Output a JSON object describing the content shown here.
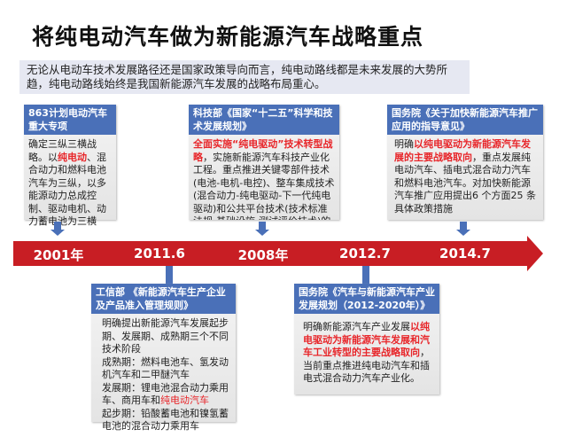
{
  "title": "将纯电动汽车做为新能源汽车战略重点",
  "intro": "无论从电动车技术发展路径还是国家政策导向而言，纯电动路线都是未来发展的大势所趋，纯电动路线始终是我国新能源汽车发展的战略布局重心。",
  "timeline": [
    "2001年",
    "2011.6",
    "2008年",
    "2012.7",
    "2014.7"
  ],
  "top_boxes": [
    {
      "header": "863计划电动汽车重大专项",
      "pre": "确定三纵三横战略。以",
      "red": "纯电动",
      "post": "、混合动力和燃料电池汽车为三纵，以多能源动力总成控制、驱动电机、动力蓄电池为三横"
    },
    {
      "header": "科技部《国家“十二五”科学和技术发展规划》",
      "pre": "",
      "red": "全面实施“纯电驱动”技术转型战略",
      "post": "，实施新能源汽车科技产业化工程。重点推进关键零部件技术(电池-电机-电控)、整车集成技术(混合动力-纯电驱动-下一代纯电驱动)和公共平台技术(技术标准法规-基础设施-测试评价技术)的研究与"
    },
    {
      "header": "国务院《关于加快新能源汽车推广应用的指导意见》",
      "pre": "明确",
      "red": "以纯电驱动为新能源汽车发展的主要战略取向",
      "post": "，重点发展纯电动汽车、插电式混合动力汽车和燃料电池汽车。对加快新能源汽车推广应用提出6 个方面25 条具体政策措施"
    }
  ],
  "bottom_boxes": [
    {
      "header": "工信部 《新能源汽车生产企业及产品准入管理规则》",
      "pre": "明确提出新能源汽车发展起步期、发展期、成熟期三个不同技术阶段\n成熟期：燃料电池车、氢发动机汽车和二甲醚汽车\n发展期：锂电池混合动力乘用车、商用车和",
      "red": "纯电动汽车",
      "post": "\n起步期：铅酸蓄电池和镍氢蓄电池的混合动力乘用车"
    },
    {
      "header": "国务院《汽车与新能源汽车产业发展规划（2012-2020年）》",
      "pre": "明确新能源汽车产业发展",
      "red": "以纯电驱动为新能源汽车发展和汽车工业转型的主要战略取向",
      "post": "，当前重点推进纯电动汽车和插电式混合动力汽车产业化。"
    }
  ],
  "colors": {
    "header_blue": "#4a70b8",
    "timeline_red": "#c81e24",
    "highlight_red": "#e8262a"
  }
}
